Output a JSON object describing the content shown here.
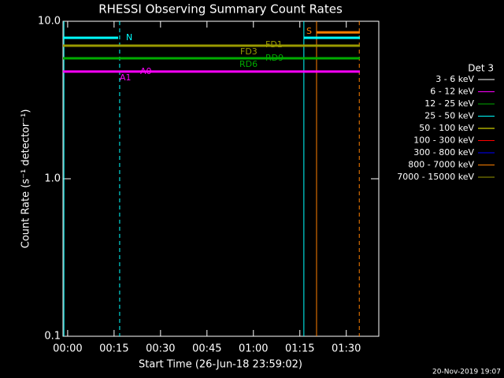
{
  "chart_data": {
    "type": "line",
    "title": "RHESSI Observing Summary Count Rates",
    "xlabel": "Start Time (26-Jun-18 23:59:02)",
    "ylabel": "Count Rate (s⁻¹ detector⁻¹)",
    "footer": "20-Nov-2019 19:07",
    "legend_title": "Det 3",
    "log_y": true,
    "xlim": [
      -1.5,
      100.5
    ],
    "xticks": [
      {
        "value": 0,
        "label": "00:00"
      },
      {
        "value": 15,
        "label": "00:15"
      },
      {
        "value": 30,
        "label": "00:30"
      },
      {
        "value": 45,
        "label": "00:45"
      },
      {
        "value": 60,
        "label": "01:00"
      },
      {
        "value": 75,
        "label": "01:15"
      },
      {
        "value": 90,
        "label": "01:30"
      }
    ],
    "ylim": [
      0.1,
      10
    ],
    "yticks": [
      0.1,
      {
        "value": 1,
        "label": "1.0"
      },
      {
        "value": 10,
        "label": "10.0"
      }
    ],
    "series": [
      {
        "name": "3 - 6 keV",
        "color": "#ffffff",
        "x": [],
        "values": []
      },
      {
        "name": "6 - 12 keV",
        "color": "#ff00ff",
        "x": [
          -1.5,
          94.4
        ],
        "values": [
          4.79,
          4.79
        ]
      },
      {
        "name": "12 - 25 keV",
        "color": "#00aa00",
        "x": [
          -1.5,
          94.4
        ],
        "values": [
          5.82,
          5.82
        ]
      },
      {
        "name": "25 - 50 keV",
        "color": "#00ffff",
        "x": [
          -1.5,
          16.3,
          40,
          76.3,
          94.4
        ],
        "values": [
          7.85,
          7.85,
          null,
          7.85,
          7.85
        ]
      },
      {
        "name": "50 - 100 keV",
        "color": "#ffff00",
        "x": [],
        "values": []
      },
      {
        "name": "100 - 300 keV",
        "color": "#ff0000",
        "x": [],
        "values": []
      },
      {
        "name": "300 - 800 keV",
        "color": "#0000ff",
        "x": [],
        "values": []
      },
      {
        "name": "800 - 7000 keV",
        "color": "#ff8000",
        "x": [
          80.4,
          94.4
        ],
        "values": [
          8.5,
          8.5
        ]
      },
      {
        "name": "7000 - 15000 keV",
        "color": "#999900",
        "x": [
          -1.5,
          94.4
        ],
        "values": [
          7.0,
          7.0
        ]
      }
    ],
    "markers": [
      {
        "x": -1.2,
        "color": "#00ffff",
        "dashed": false
      },
      {
        "x": 16.8,
        "color": "#00ffff",
        "dashed": true
      },
      {
        "x": 76.3,
        "color": "#00ffff",
        "dashed": false
      },
      {
        "x": 80.4,
        "color": "#ff8000",
        "dashed": false
      },
      {
        "x": 94.2,
        "color": "#ff8000",
        "dashed": true
      }
    ],
    "annotations": [
      {
        "text": "N",
        "color": "#00ffff"
      },
      {
        "text": "S",
        "color": "#ff8000"
      },
      {
        "text": "FD1",
        "color": "#999900"
      },
      {
        "text": "FD3",
        "color": "#999900"
      },
      {
        "text": "RD9",
        "color": "#00aa00"
      },
      {
        "text": "RD6",
        "color": "#00aa00"
      },
      {
        "text": "A0",
        "color": "#ff00ff"
      },
      {
        "text": "A1",
        "color": "#ff00ff"
      }
    ]
  }
}
